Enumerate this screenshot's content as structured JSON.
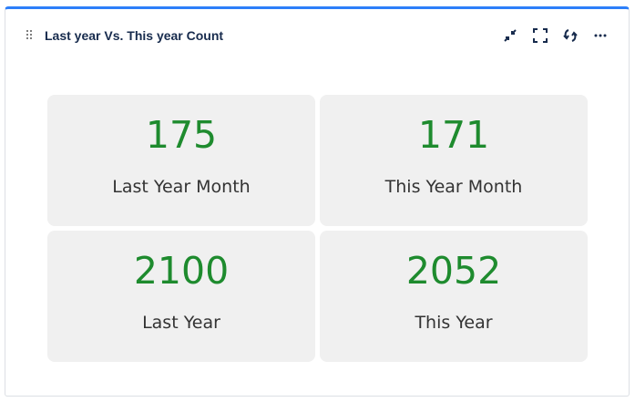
{
  "widget": {
    "title": "Last year Vs. This year Count",
    "icons": [
      "drag-handle-icon",
      "collapse-icon",
      "fullscreen-icon",
      "refresh-icon",
      "more-icon"
    ],
    "accent_color": "#2d7ff9",
    "value_color": "#1e8b2e"
  },
  "tiles": [
    {
      "value": "175",
      "label": "Last Year Month"
    },
    {
      "value": "171",
      "label": "This Year Month"
    },
    {
      "value": "2100",
      "label": "Last Year"
    },
    {
      "value": "2052",
      "label": "This Year"
    }
  ]
}
